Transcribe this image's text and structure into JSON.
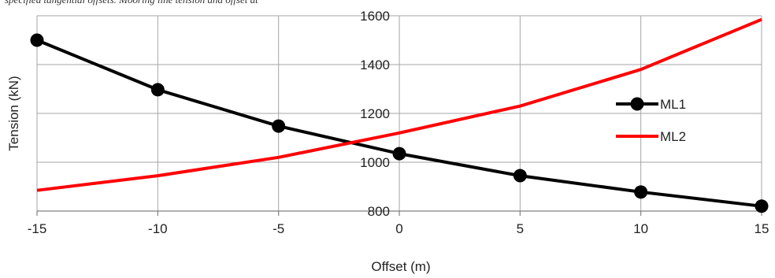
{
  "caption": "specified tangential offsets. Mooring line tension and offset at",
  "chart_data": {
    "type": "line",
    "title": "",
    "xlabel": "Offset (m)",
    "ylabel": "Tension (kN)",
    "xlim": [
      -15,
      15
    ],
    "ylim": [
      800,
      1600
    ],
    "xticks": [
      -15,
      -10,
      -5,
      0,
      5,
      10,
      15
    ],
    "yticks": [
      800,
      1000,
      1200,
      1400,
      1600
    ],
    "grid": true,
    "legend": "right",
    "series": [
      {
        "name": "ML1",
        "color": "#000000",
        "markers": true,
        "x": [
          -15,
          -10,
          -5,
          0,
          5,
          10,
          15
        ],
        "y": [
          1500,
          1297,
          1148,
          1035,
          945,
          878,
          820
        ]
      },
      {
        "name": "ML2",
        "color": "#ff0000",
        "markers": false,
        "x": [
          -15,
          -10,
          -5,
          0,
          5,
          10,
          15
        ],
        "y": [
          885,
          945,
          1020,
          1120,
          1230,
          1380,
          1585
        ]
      }
    ]
  }
}
